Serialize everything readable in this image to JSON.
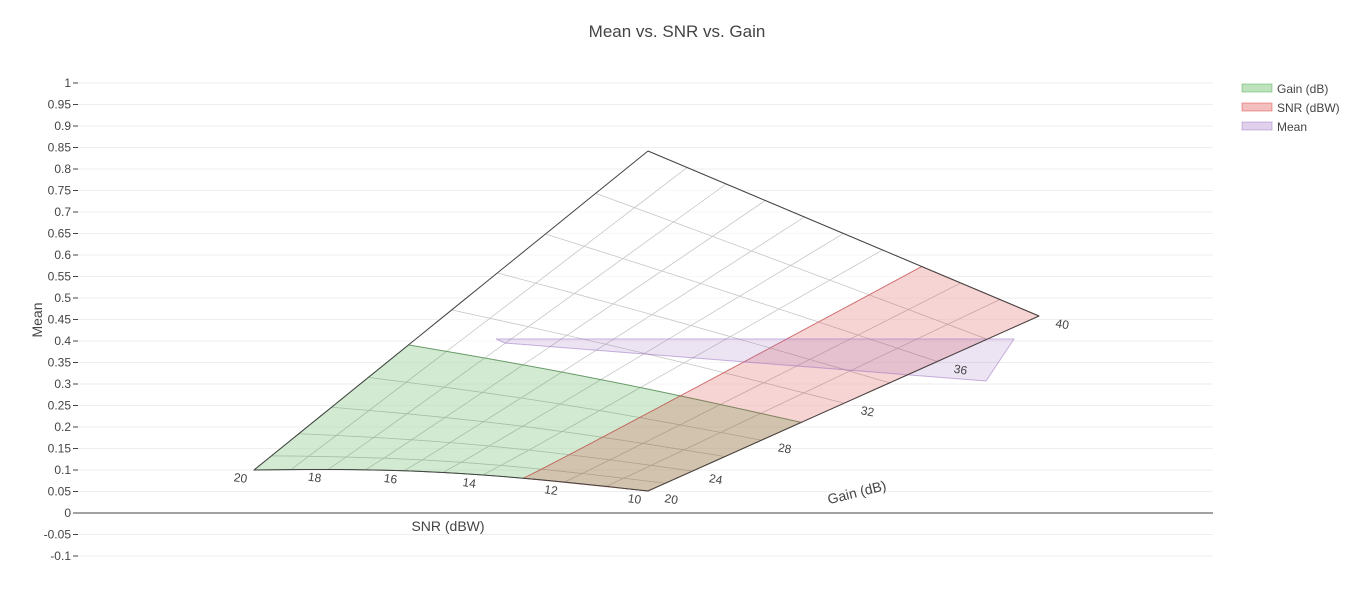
{
  "chart_data": {
    "type": "surface3d",
    "title": "Mean vs. SNR vs. Gain",
    "ylabel": "Mean",
    "y_axis": {
      "range": [
        -0.1,
        1
      ],
      "ticks": [
        "1",
        "0.95",
        "0.9",
        "0.85",
        "0.8",
        "0.75",
        "0.7",
        "0.65",
        "0.6",
        "0.55",
        "0.5",
        "0.45",
        "0.4",
        "0.35",
        "0.3",
        "0.25",
        "0.2",
        "0.15",
        "0.1",
        "0.05",
        "0",
        "-0.05",
        "-0.1"
      ],
      "tick_values": [
        1,
        0.95,
        0.9,
        0.85,
        0.8,
        0.75,
        0.7,
        0.65,
        0.6,
        0.55,
        0.5,
        0.45,
        0.4,
        0.35,
        0.3,
        0.25,
        0.2,
        0.15,
        0.1,
        0.05,
        0,
        -0.05,
        -0.1
      ],
      "grid": true
    },
    "snr_axis": {
      "label": "SNR (dBW)",
      "ticks": [
        "20",
        "18",
        "16",
        "14",
        "12",
        "10"
      ],
      "range": [
        10,
        20
      ]
    },
    "gain_axis": {
      "label": "Gain (dB)",
      "ticks": [
        "20",
        "24",
        "28",
        "32",
        "36",
        "40"
      ],
      "range": [
        20,
        40
      ]
    },
    "legend": {
      "position": "top-right",
      "entries": [
        {
          "name": "Gain (dB)",
          "color": "#2ca02c"
        },
        {
          "name": "SNR (dBW)",
          "color": "#d62728"
        },
        {
          "name": "Mean",
          "color": "#9467bd"
        }
      ]
    },
    "surface": {
      "corners": {
        "snr20_gain20": 0.1,
        "snr10_gain20": 0.05,
        "snr10_gain40": 0.46,
        "snr20_gain40": 0.85
      }
    },
    "planes": {
      "mean_value": 0.4,
      "gain_value": 30,
      "snr_value": 13
    }
  }
}
